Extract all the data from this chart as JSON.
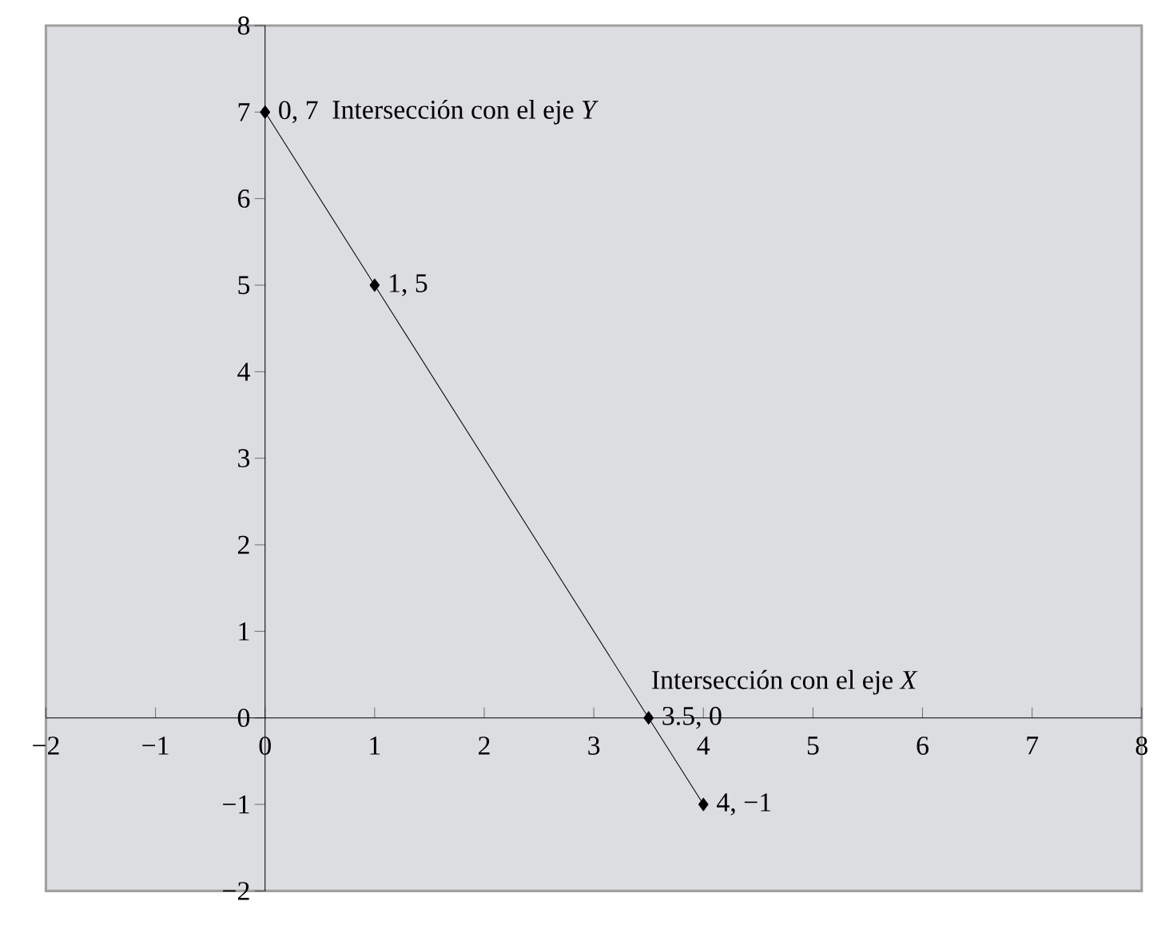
{
  "chart_data": {
    "type": "line",
    "x": [
      0,
      1,
      3.5,
      4
    ],
    "values": [
      7,
      5,
      0,
      -1
    ],
    "color": "#000000",
    "marker": "diamond",
    "value_labels": [
      "0, 7",
      "1, 5",
      "3.5, 0",
      "4, −1"
    ],
    "annotations": [
      {
        "text": "Intersección con el eje *Y*",
        "x": 0,
        "y": 7
      },
      {
        "text": "Intersección con el eje *X*",
        "x": 3.5,
        "y": 0
      }
    ],
    "xlim": [
      -2,
      8
    ],
    "ylim": [
      -2,
      8
    ],
    "xticks": [
      {
        "value": -2,
        "label": "−2"
      },
      {
        "value": -1,
        "label": "−1"
      },
      0,
      1,
      2,
      3,
      4,
      5,
      6,
      7,
      8
    ],
    "yticks": [
      {
        "value": -2,
        "label": "−2"
      },
      {
        "value": -1,
        "label": "−1"
      },
      0,
      1,
      2,
      3,
      4,
      5,
      6,
      7,
      8
    ],
    "grid": false
  }
}
